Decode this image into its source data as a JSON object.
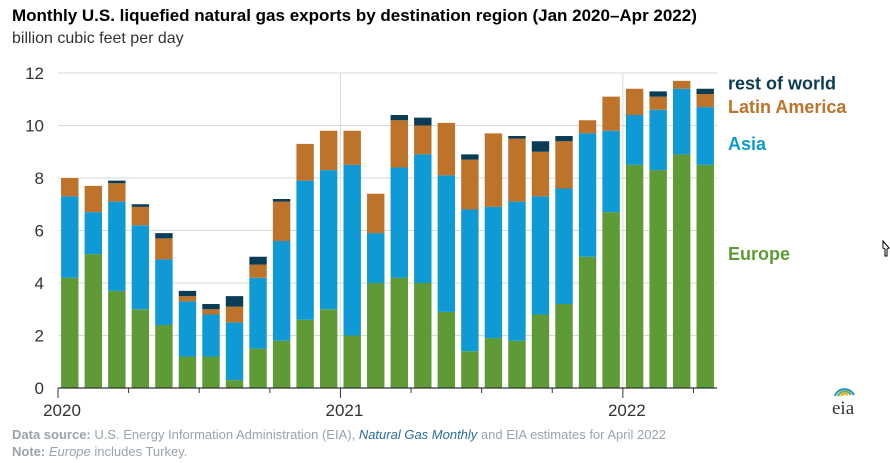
{
  "chart_data": {
    "type": "bar",
    "stacked": true,
    "title": "Monthly U.S. liquefied natural gas exports by destination region (Jan 2020–Apr 2022)",
    "subtitle": "billion cubic feet per day",
    "ylim": [
      0,
      12
    ],
    "yticks": [
      0,
      2,
      4,
      6,
      8,
      10,
      12
    ],
    "grid": true,
    "x_labels": [
      {
        "label": "2020",
        "index": 0
      },
      {
        "label": "2021",
        "index": 12
      },
      {
        "label": "2022",
        "index": 24
      }
    ],
    "categories": [
      "Jan 2020",
      "Feb 2020",
      "Mar 2020",
      "Apr 2020",
      "May 2020",
      "Jun 2020",
      "Jul 2020",
      "Aug 2020",
      "Sep 2020",
      "Oct 2020",
      "Nov 2020",
      "Dec 2020",
      "Jan 2021",
      "Feb 2021",
      "Mar 2021",
      "Apr 2021",
      "May 2021",
      "Jun 2021",
      "Jul 2021",
      "Aug 2021",
      "Sep 2021",
      "Oct 2021",
      "Nov 2021",
      "Dec 2021",
      "Jan 2022",
      "Feb 2022",
      "Mar 2022",
      "Apr 2022"
    ],
    "series": [
      {
        "name": "Europe",
        "color": "#5e9b36",
        "values": [
          4.2,
          5.1,
          3.7,
          3.0,
          2.4,
          1.2,
          1.2,
          0.3,
          1.5,
          1.8,
          2.6,
          3.0,
          2.0,
          4.0,
          4.2,
          4.0,
          2.9,
          1.4,
          1.9,
          1.8,
          2.8,
          3.2,
          5.0,
          6.7,
          8.5,
          8.3,
          8.9,
          8.5
        ]
      },
      {
        "name": "Asia",
        "color": "#0f9ad6",
        "values": [
          3.1,
          1.6,
          3.4,
          3.2,
          2.5,
          2.1,
          1.6,
          2.2,
          2.7,
          3.8,
          5.3,
          5.3,
          6.5,
          1.9,
          4.2,
          4.9,
          5.2,
          5.4,
          5.0,
          5.3,
          4.5,
          4.4,
          4.7,
          3.1,
          1.9,
          2.3,
          2.5,
          2.2
        ]
      },
      {
        "name": "Latin America",
        "color": "#bd732a",
        "values": [
          0.7,
          1.0,
          0.7,
          0.7,
          0.8,
          0.2,
          0.2,
          0.6,
          0.5,
          1.5,
          1.4,
          1.5,
          1.3,
          1.5,
          1.8,
          1.1,
          2.0,
          1.9,
          2.8,
          2.4,
          1.7,
          1.8,
          0.5,
          1.3,
          1.0,
          0.5,
          0.3,
          0.5
        ]
      },
      {
        "name": "rest of world",
        "color": "#0b3c56",
        "values": [
          0.0,
          0.0,
          0.1,
          0.1,
          0.2,
          0.2,
          0.2,
          0.4,
          0.3,
          0.1,
          0.0,
          0.0,
          0.0,
          0.0,
          0.2,
          0.3,
          0.0,
          0.2,
          0.0,
          0.1,
          0.4,
          0.2,
          0.0,
          0.0,
          0.0,
          0.2,
          0.0,
          0.2
        ]
      }
    ],
    "legend": [
      {
        "name": "rest of world",
        "color": "#0b3c56",
        "y": 11.6
      },
      {
        "name": "Latin America",
        "color": "#bd732a",
        "y": 10.7
      },
      {
        "name": "Asia",
        "color": "#0f9ad6",
        "y": 9.3
      },
      {
        "name": "Europe",
        "color": "#5e9b36",
        "y": 5.1
      }
    ]
  },
  "source": {
    "label": "Data source:",
    "text1": " U.S. Energy Information Administration (EIA), ",
    "link": "Natural Gas Monthly",
    "text2": " and EIA estimates for April 2022"
  },
  "note": {
    "label": "Note:",
    "italic": "Europe",
    "text": " includes Turkey."
  },
  "logo": {
    "text": "eia"
  }
}
